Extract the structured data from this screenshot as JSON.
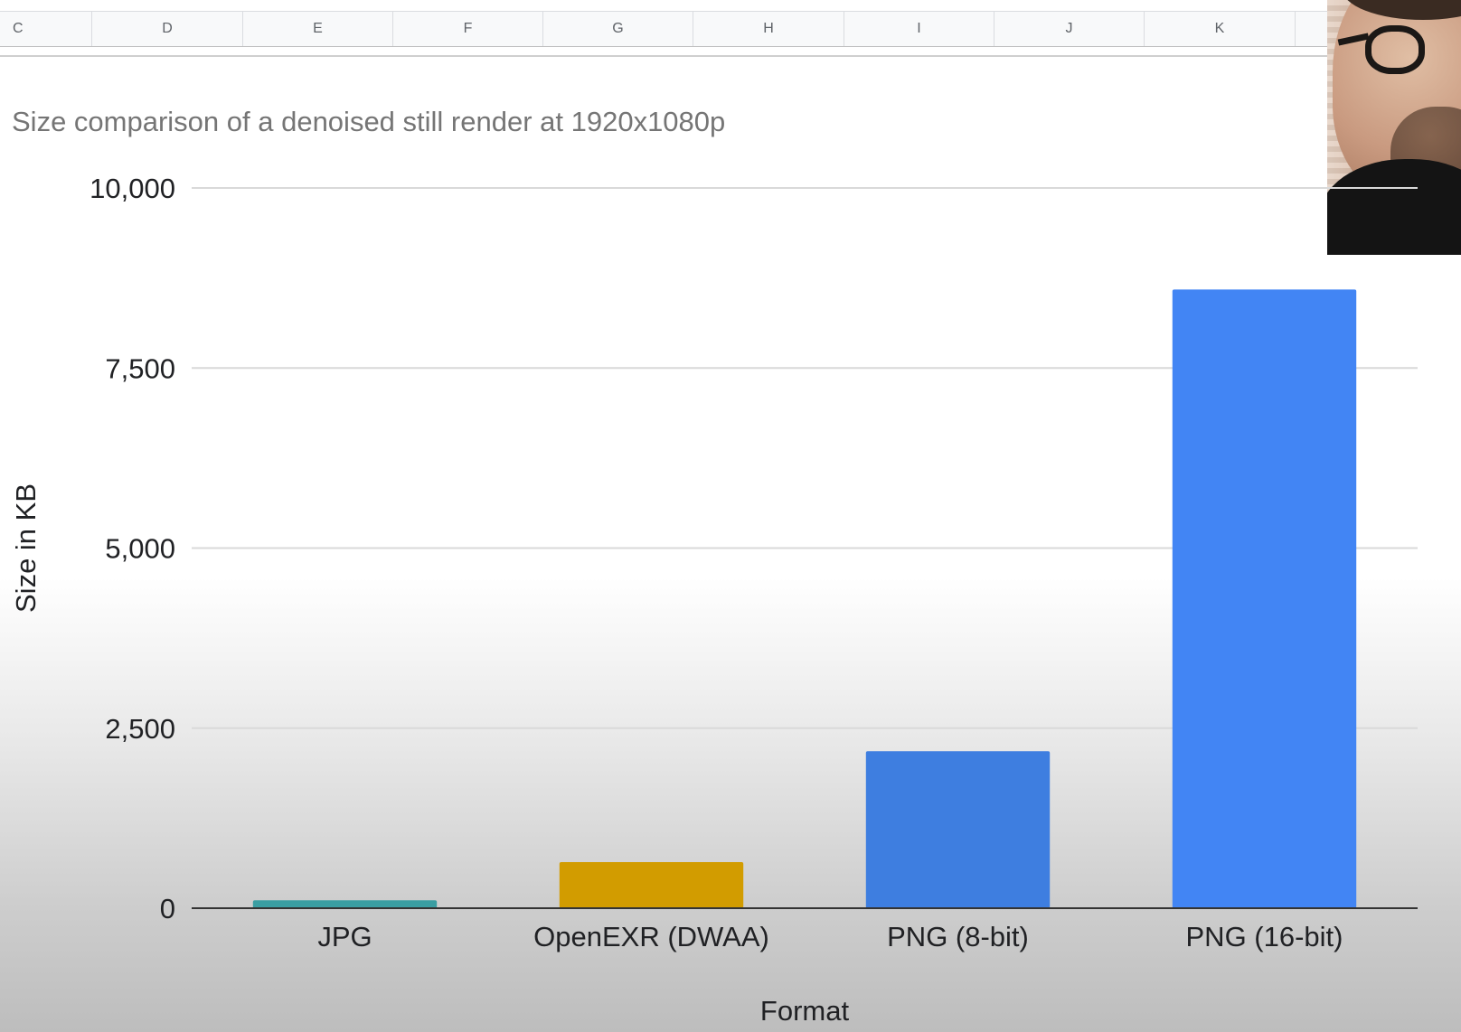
{
  "sheet": {
    "columns": [
      "C",
      "D",
      "E",
      "F",
      "G",
      "H",
      "I",
      "J",
      "K"
    ]
  },
  "chart_data": {
    "type": "bar",
    "title": "Size comparison of a denoised still render at 1920x1080p",
    "xlabel": "Format",
    "ylabel": "Size in KB",
    "categories": [
      "JPG",
      "OpenEXR (DWAA)",
      "PNG (8-bit)",
      "PNG (16-bit)"
    ],
    "values": [
      110,
      640,
      2180,
      8590
    ],
    "colors": [
      "#3a9ea2",
      "#d29c00",
      "#3e7ee0",
      "#4285f4"
    ],
    "ylim": [
      0,
      10000
    ],
    "yticks": [
      0,
      2500,
      5000,
      7500,
      10000
    ],
    "ytick_labels": [
      "0",
      "2,500",
      "5,000",
      "7,500",
      "10,000"
    ],
    "grid": true,
    "legend": "none"
  }
}
